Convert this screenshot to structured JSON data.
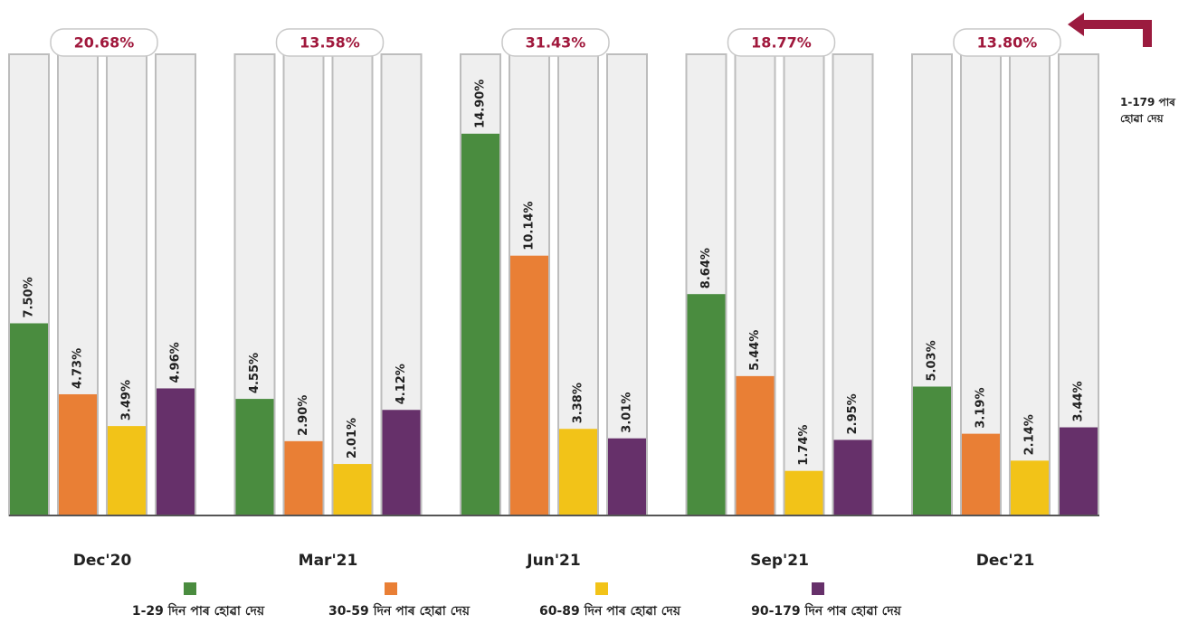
{
  "chart_data": {
    "type": "bar",
    "categories": [
      "Dec'20",
      "Mar'21",
      "Jun'21",
      "Sep'21",
      "Dec'21"
    ],
    "series": [
      {
        "name": "1-29 দিন পাৰ হোৱা দেয়",
        "color": "#4a8c3f",
        "values": [
          7.5,
          4.55,
          14.9,
          8.64,
          5.03
        ],
        "value_labels": [
          "7.50%",
          "4.55%",
          "14.90%",
          "8.64%",
          "5.03%"
        ]
      },
      {
        "name": "30-59 দিন পাৰ হোৱা দেয়",
        "color": "#e97f35",
        "values": [
          4.73,
          2.9,
          10.14,
          5.44,
          3.19
        ],
        "value_labels": [
          "4.73%",
          "2.90%",
          "10.14%",
          "5.44%",
          "3.19%"
        ]
      },
      {
        "name": "60-89 দিন পাৰ হোৱা দেয়",
        "color": "#f2c318",
        "values": [
          3.49,
          2.01,
          3.38,
          1.74,
          2.14
        ],
        "value_labels": [
          "3.49%",
          "2.01%",
          "3.38%",
          "1.74%",
          "2.14%"
        ]
      },
      {
        "name": "90-179 দিন পাৰ হোৱা দেয়",
        "color": "#66306a",
        "values": [
          4.96,
          4.12,
          3.01,
          2.95,
          3.44
        ],
        "value_labels": [
          "4.96%",
          "4.12%",
          "3.01%",
          "2.95%",
          "3.44%"
        ]
      }
    ],
    "totals": [
      20.68,
      13.58,
      31.43,
      18.77,
      13.8
    ],
    "total_labels": [
      "20.68%",
      "13.58%",
      "31.43%",
      "18.77%",
      "13.80%"
    ],
    "annotation": "1-179 পাৰ হোৱা দেয়",
    "ylim": [
      0,
      18
    ]
  }
}
